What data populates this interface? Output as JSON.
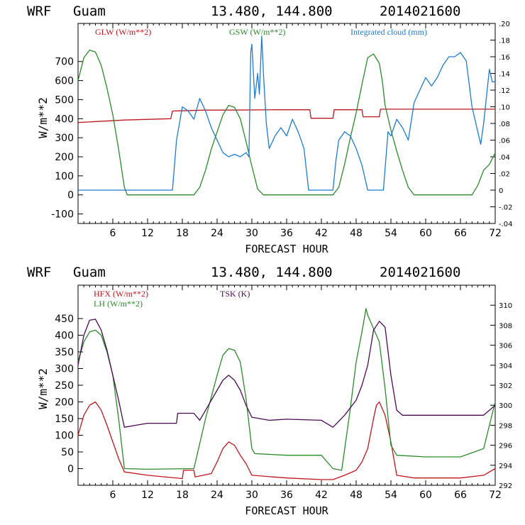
{
  "chart_data": [
    {
      "type": "line",
      "header": {
        "model": "WRF",
        "station": "Guam",
        "coords": "13.480, 144.800",
        "init": "2014021600"
      },
      "xlabel": "FORECAST HOUR",
      "ylabel": "W/m**2",
      "xlim": [
        0,
        72
      ],
      "ylim": [
        -150,
        900
      ],
      "x_ticks": [
        6,
        12,
        18,
        24,
        30,
        36,
        42,
        48,
        54,
        60,
        66,
        72
      ],
      "y_ticks": [
        -100,
        0,
        100,
        200,
        300,
        400,
        500,
        600,
        700
      ],
      "y2lim": [
        -0.04,
        0.2
      ],
      "y2_ticks": [
        ".20",
        ".18",
        ".16",
        ".14",
        ".12",
        ".10",
        ".08",
        ".06",
        ".04",
        ".02",
        "0",
        "-.02",
        "-.04"
      ],
      "colors": {
        "glw": "#c0161e",
        "gsw": "#2b8a2b",
        "cloud": "#1e7bd4"
      },
      "series": [
        {
          "name": "GLW (W/m**2)",
          "key": "glw",
          "axis": "left",
          "points": [
            [
              0,
              380
            ],
            [
              8,
              393
            ],
            [
              16,
              400
            ],
            [
              16.3,
              440
            ],
            [
              22,
              445
            ],
            [
              26,
              445
            ],
            [
              34,
              447
            ],
            [
              40,
              447
            ],
            [
              40.2,
              402
            ],
            [
              44,
              402
            ],
            [
              44.2,
              447
            ],
            [
              49,
              447
            ],
            [
              49.2,
              410
            ],
            [
              52,
              410
            ],
            [
              52.2,
              450
            ],
            [
              72,
              450
            ]
          ]
        },
        {
          "name": "GSW (W/m**2)",
          "key": "gsw",
          "axis": "left",
          "points": [
            [
              0,
              600
            ],
            [
              1,
              720
            ],
            [
              2,
              760
            ],
            [
              3,
              750
            ],
            [
              4,
              680
            ],
            [
              5,
              560
            ],
            [
              6,
              420
            ],
            [
              7,
              240
            ],
            [
              8,
              40
            ],
            [
              8.5,
              0
            ],
            [
              20,
              0
            ],
            [
              21,
              40
            ],
            [
              22,
              130
            ],
            [
              23,
              240
            ],
            [
              24,
              330
            ],
            [
              25,
              420
            ],
            [
              26,
              470
            ],
            [
              27,
              460
            ],
            [
              28,
              400
            ],
            [
              29,
              280
            ],
            [
              30,
              150
            ],
            [
              31,
              30
            ],
            [
              32,
              0
            ],
            [
              44,
              0
            ],
            [
              45,
              40
            ],
            [
              46,
              160
            ],
            [
              47,
              300
            ],
            [
              48,
              430
            ],
            [
              49,
              580
            ],
            [
              50,
              720
            ],
            [
              51,
              740
            ],
            [
              52,
              690
            ],
            [
              52.5,
              600
            ],
            [
              53,
              470
            ],
            [
              54,
              340
            ],
            [
              55,
              230
            ],
            [
              56,
              130
            ],
            [
              57,
              40
            ],
            [
              58,
              0
            ],
            [
              68,
              0
            ],
            [
              69,
              50
            ],
            [
              70,
              130
            ],
            [
              71,
              160
            ],
            [
              72,
              220
            ]
          ]
        },
        {
          "name": "Integrated cloud (mm)",
          "key": "cloud",
          "axis": "right",
          "points": [
            [
              0,
              0
            ],
            [
              16.3,
              0
            ],
            [
              17,
              0.06
            ],
            [
              18,
              0.1
            ],
            [
              19,
              0.095
            ],
            [
              20,
              0.085
            ],
            [
              21,
              0.11
            ],
            [
              22,
              0.095
            ],
            [
              23,
              0.075
            ],
            [
              24,
              0.06
            ],
            [
              25,
              0.045
            ],
            [
              26,
              0.04
            ],
            [
              27,
              0.043
            ],
            [
              28,
              0.04
            ],
            [
              29,
              0.045
            ],
            [
              29.5,
              0.04
            ],
            [
              29.8,
              0.165
            ],
            [
              30,
              0.175
            ],
            [
              30.5,
              0.11
            ],
            [
              31,
              0.14
            ],
            [
              31.3,
              0.115
            ],
            [
              31.7,
              0.185
            ],
            [
              32,
              0.14
            ],
            [
              32.5,
              0.08
            ],
            [
              33,
              0.05
            ],
            [
              34,
              0.065
            ],
            [
              35,
              0.075
            ],
            [
              36,
              0.065
            ],
            [
              37,
              0.085
            ],
            [
              38,
              0.07
            ],
            [
              39,
              0.05
            ],
            [
              39.8,
              0.0
            ],
            [
              44,
              0.0
            ],
            [
              44.5,
              0.035
            ],
            [
              45,
              0.06
            ],
            [
              46,
              0.07
            ],
            [
              47,
              0.065
            ],
            [
              48,
              0.05
            ],
            [
              49,
              0.03
            ],
            [
              50,
              0.0
            ],
            [
              52.7,
              0.0
            ],
            [
              53.5,
              0.07
            ],
            [
              54,
              0.065
            ],
            [
              55,
              0.085
            ],
            [
              56,
              0.075
            ],
            [
              57,
              0.06
            ],
            [
              58,
              0.105
            ],
            [
              59,
              0.12
            ],
            [
              60,
              0.135
            ],
            [
              61,
              0.125
            ],
            [
              62,
              0.135
            ],
            [
              63,
              0.15
            ],
            [
              64,
              0.16
            ],
            [
              65,
              0.16
            ],
            [
              66,
              0.165
            ],
            [
              67,
              0.155
            ],
            [
              68,
              0.1
            ],
            [
              69,
              0.07
            ],
            [
              69.5,
              0.055
            ],
            [
              70,
              0.08
            ],
            [
              71,
              0.145
            ],
            [
              71.5,
              0.13
            ],
            [
              72,
              0.13
            ]
          ]
        }
      ]
    },
    {
      "type": "line",
      "header": {
        "model": "WRF",
        "station": "Guam",
        "coords": "13.480, 144.800",
        "init": "2014021600"
      },
      "xlabel": "FORECAST HOUR",
      "ylabel": "W/m**2",
      "xlim": [
        0,
        72
      ],
      "ylim": [
        -50,
        550
      ],
      "x_ticks": [
        6,
        12,
        18,
        24,
        30,
        36,
        42,
        48,
        54,
        60,
        66,
        72
      ],
      "y_ticks": [
        0,
        50,
        100,
        150,
        200,
        250,
        300,
        350,
        400,
        450
      ],
      "y2lim": [
        292,
        312
      ],
      "y2_ticks": [
        "310",
        "308",
        "306",
        "304",
        "302",
        "300",
        "298",
        "296",
        "294",
        "292"
      ],
      "colors": {
        "hfx": "#c0161e",
        "lh": "#2b8a2b",
        "tsk": "#4a0a52"
      },
      "series": [
        {
          "name": "HFX (W/m**2)",
          "key": "hfx",
          "axis": "left",
          "points": [
            [
              0,
              100
            ],
            [
              1,
              160
            ],
            [
              2,
              190
            ],
            [
              3,
              200
            ],
            [
              4,
              175
            ],
            [
              5,
              130
            ],
            [
              6,
              80
            ],
            [
              7,
              30
            ],
            [
              8,
              -10
            ],
            [
              12,
              -20
            ],
            [
              18,
              -30
            ],
            [
              18.2,
              -5
            ],
            [
              20,
              -5
            ],
            [
              20.2,
              -25
            ],
            [
              23,
              -15
            ],
            [
              24,
              20
            ],
            [
              25,
              60
            ],
            [
              26,
              80
            ],
            [
              27,
              70
            ],
            [
              28,
              40
            ],
            [
              29,
              15
            ],
            [
              30,
              -20
            ],
            [
              36,
              -28
            ],
            [
              42,
              -33
            ],
            [
              44,
              -33
            ],
            [
              46,
              -20
            ],
            [
              48,
              -5
            ],
            [
              49,
              20
            ],
            [
              50,
              60
            ],
            [
              51,
              150
            ],
            [
              51.5,
              190
            ],
            [
              52,
              200
            ],
            [
              53,
              160
            ],
            [
              54,
              80
            ],
            [
              55,
              -20
            ],
            [
              58,
              -28
            ],
            [
              66,
              -28
            ],
            [
              70,
              -20
            ],
            [
              72,
              0
            ]
          ]
        },
        {
          "name": "LH (W/m**2)",
          "key": "lh",
          "axis": "left",
          "points": [
            [
              0,
              320
            ],
            [
              1,
              380
            ],
            [
              2,
              410
            ],
            [
              3,
              415
            ],
            [
              4,
              400
            ],
            [
              5,
              350
            ],
            [
              6,
              280
            ],
            [
              7,
              150
            ],
            [
              8,
              0
            ],
            [
              12,
              -2
            ],
            [
              20,
              0
            ],
            [
              22,
              150
            ],
            [
              24,
              280
            ],
            [
              25,
              340
            ],
            [
              26,
              360
            ],
            [
              27,
              355
            ],
            [
              28,
              320
            ],
            [
              29,
              210
            ],
            [
              30,
              60
            ],
            [
              30.5,
              45
            ],
            [
              36,
              40
            ],
            [
              42,
              40
            ],
            [
              44,
              0
            ],
            [
              45.5,
              -5
            ],
            [
              47,
              180
            ],
            [
              48,
              320
            ],
            [
              49,
              410
            ],
            [
              49.7,
              480
            ],
            [
              50,
              460
            ],
            [
              51,
              420
            ],
            [
              52,
              380
            ],
            [
              53,
              240
            ],
            [
              54,
              70
            ],
            [
              55,
              40
            ],
            [
              60,
              35
            ],
            [
              66,
              35
            ],
            [
              70,
              60
            ],
            [
              72,
              200
            ]
          ]
        },
        {
          "name": "TSK (K)",
          "key": "tsk",
          "axis": "right",
          "points": [
            [
              0,
              304
            ],
            [
              1,
              307
            ],
            [
              2,
              308.5
            ],
            [
              3,
              308.6
            ],
            [
              4,
              307.5
            ],
            [
              5,
              305.5
            ],
            [
              6,
              303
            ],
            [
              7,
              300.5
            ],
            [
              8,
              297.8
            ],
            [
              10,
              298
            ],
            [
              12,
              298.2
            ],
            [
              17,
              298.2
            ],
            [
              17.2,
              299.2
            ],
            [
              20,
              299.2
            ],
            [
              21,
              298.5
            ],
            [
              22,
              299.5
            ],
            [
              24,
              301.5
            ],
            [
              25,
              302.5
            ],
            [
              26,
              303
            ],
            [
              27,
              302.5
            ],
            [
              28,
              301.5
            ],
            [
              29,
              300
            ],
            [
              30,
              298.8
            ],
            [
              33,
              298.5
            ],
            [
              36,
              298.6
            ],
            [
              42,
              298.5
            ],
            [
              44,
              297.8
            ],
            [
              46,
              299
            ],
            [
              48,
              300.5
            ],
            [
              49,
              302
            ],
            [
              50,
              304
            ],
            [
              51,
              307.5
            ],
            [
              52,
              308.4
            ],
            [
              53,
              307.8
            ],
            [
              54,
              303
            ],
            [
              55,
              299.5
            ],
            [
              56,
              299
            ],
            [
              60,
              299
            ],
            [
              66,
              299
            ],
            [
              70,
              299
            ],
            [
              72,
              300
            ]
          ]
        }
      ]
    }
  ]
}
